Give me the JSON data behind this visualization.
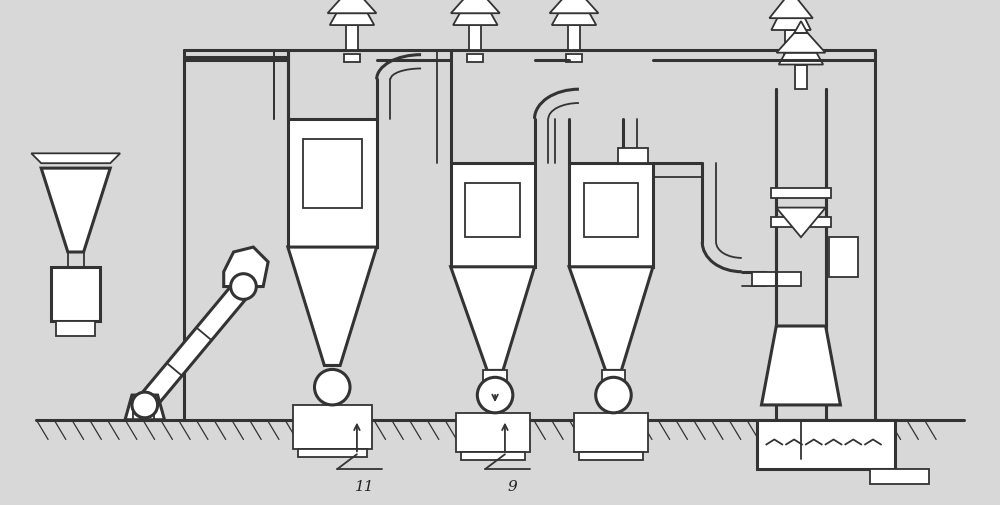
{
  "bg_color": "#d8d8d8",
  "fg_color": "#ffffff",
  "line_color": "#333333",
  "lw": 1.3,
  "lw2": 2.2,
  "lw3": 3.0,
  "label_11": "11",
  "label_9": "9",
  "figsize": [
    10.0,
    5.06
  ],
  "dpi": 100
}
